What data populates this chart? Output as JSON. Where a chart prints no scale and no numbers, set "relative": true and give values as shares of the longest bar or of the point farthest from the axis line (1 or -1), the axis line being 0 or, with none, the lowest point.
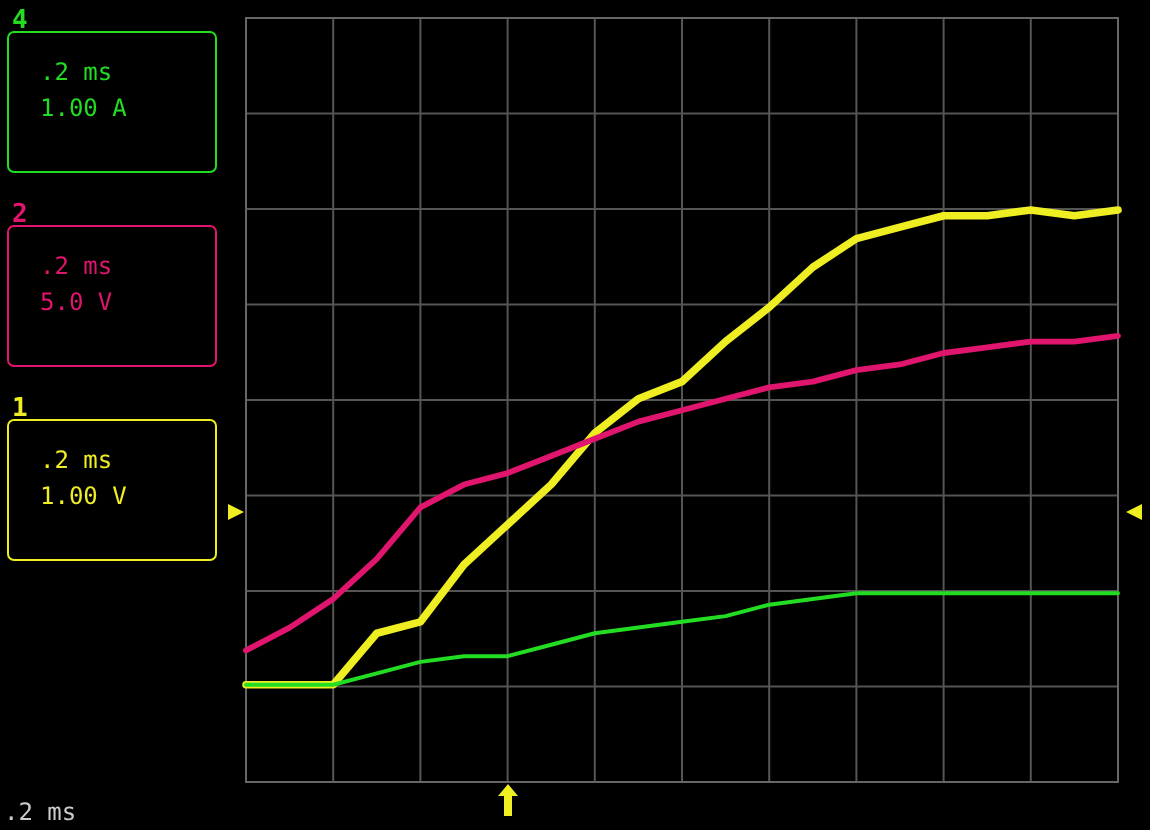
{
  "chart_data": {
    "type": "line",
    "relative": true,
    "grid": true,
    "legend": "left",
    "line_style": "solid",
    "categories": [
      null,
      null,
      null,
      null,
      null,
      null,
      null,
      null,
      null,
      null,
      null,
      null,
      null,
      null,
      null,
      null,
      null,
      null,
      null,
      null,
      null
    ],
    "series": [
      {
        "name": "4",
        "color": "#22dd22",
        "values": [
          0.17,
          0.17,
          0.17,
          0.19,
          0.21,
          0.22,
          0.22,
          0.24,
          0.26,
          0.27,
          0.28,
          0.29,
          0.31,
          0.32,
          0.33,
          0.33,
          0.33,
          0.33,
          0.33,
          0.33,
          0.33
        ]
      },
      {
        "name": "2",
        "color": "#e0156e",
        "values": [
          0.23,
          0.27,
          0.32,
          0.39,
          0.48,
          0.52,
          0.54,
          0.57,
          0.6,
          0.63,
          0.65,
          0.67,
          0.69,
          0.7,
          0.72,
          0.73,
          0.75,
          0.76,
          0.77,
          0.77,
          0.78
        ]
      },
      {
        "name": "1",
        "color": "#eeee22",
        "values": [
          0.17,
          0.17,
          0.17,
          0.26,
          0.28,
          0.38,
          0.45,
          0.52,
          0.61,
          0.67,
          0.7,
          0.77,
          0.83,
          0.9,
          0.95,
          0.97,
          0.99,
          0.99,
          1,
          0.99,
          1
        ]
      }
    ],
    "annotations": [
      ".2 ms",
      "1.00 A",
      ".2 ms",
      "5.0 V",
      ".2 ms",
      "1.00 V",
      ".2 ms"
    ]
  }
}
